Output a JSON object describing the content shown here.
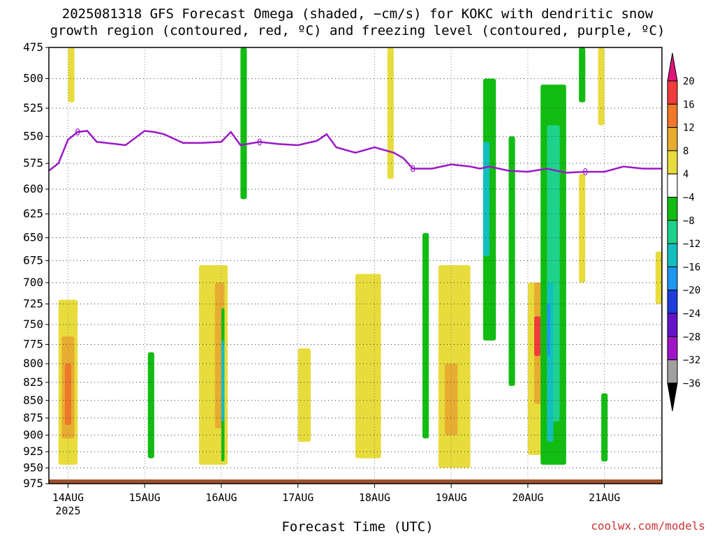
{
  "title": {
    "line1": "2025081318 GFS Forecast Omega (shaded, −cm/s) for KOKC with dendritic snow",
    "line2": "growth region (contoured, red, ºC) and freezing level (contoured, purple, ºC)"
  },
  "xlabel": "Forecast Time (UTC)",
  "credit": "coolwx.com/models",
  "chart_data": {
    "type": "heatmap",
    "variable": "omega",
    "units": "-cm/s",
    "y_axis": {
      "name": "pressure",
      "ticks": [
        475,
        500,
        525,
        550,
        575,
        600,
        625,
        650,
        675,
        700,
        725,
        750,
        775,
        800,
        825,
        850,
        875,
        900,
        925,
        950,
        975
      ],
      "range": [
        975,
        475
      ],
      "scale": "log"
    },
    "x_axis": {
      "range": [
        "2025-08-13T18:00Z",
        "2025-08-21T18:00Z"
      ],
      "ticks": [
        {
          "t": "2025-08-14T00:00Z",
          "label": "14AUG",
          "sublabel": "2025"
        },
        {
          "t": "2025-08-15T00:00Z",
          "label": "15AUG"
        },
        {
          "t": "2025-08-16T00:00Z",
          "label": "16AUG"
        },
        {
          "t": "2025-08-17T00:00Z",
          "label": "17AUG"
        },
        {
          "t": "2025-08-18T00:00Z",
          "label": "18AUG"
        },
        {
          "t": "2025-08-19T00:00Z",
          "label": "19AUG"
        },
        {
          "t": "2025-08-20T00:00Z",
          "label": "20AUG"
        },
        {
          "t": "2025-08-21T00:00Z",
          "label": "21AUG"
        }
      ]
    },
    "grid": true,
    "colorbar": {
      "placement": "right",
      "labels": [
        "20",
        "16",
        "12",
        "8",
        "4",
        "−4",
        "−8",
        "−12",
        "−16",
        "−20",
        "−24",
        "−28",
        "−32",
        "−36"
      ],
      "bins": [
        {
          "min": 20,
          "max": null,
          "color": "#e0147a"
        },
        {
          "min": 16,
          "max": 20,
          "color": "#f03c3c"
        },
        {
          "min": 12,
          "max": 16,
          "color": "#f07828"
        },
        {
          "min": 8,
          "max": 12,
          "color": "#e8ac30"
        },
        {
          "min": 4,
          "max": 8,
          "color": "#e8dc3c"
        },
        {
          "min": -4,
          "max": 4,
          "color": "#ffffff"
        },
        {
          "min": -8,
          "max": -4,
          "color": "#12bc12"
        },
        {
          "min": -12,
          "max": -8,
          "color": "#1ed28c"
        },
        {
          "min": -16,
          "max": -12,
          "color": "#14bebe"
        },
        {
          "min": -20,
          "max": -16,
          "color": "#1e96f0"
        },
        {
          "min": -24,
          "max": -20,
          "color": "#1e3cdc"
        },
        {
          "min": -28,
          "max": -24,
          "color": "#6414c8"
        },
        {
          "min": -32,
          "max": -28,
          "color": "#a014c8"
        },
        {
          "min": -36,
          "max": -32,
          "color": "#a0a0a0"
        },
        {
          "min": null,
          "max": -36,
          "color": "#000000"
        }
      ]
    },
    "freezing_level": {
      "color": "#9b18c8",
      "label": "0",
      "points": [
        [
          "2025-08-13T18:00Z",
          582
        ],
        [
          "2025-08-13T21:00Z",
          575
        ],
        [
          "2025-08-14T00:00Z",
          553
        ],
        [
          "2025-08-14T03:00Z",
          546
        ],
        [
          "2025-08-14T06:00Z",
          545
        ],
        [
          "2025-08-14T09:00Z",
          555
        ],
        [
          "2025-08-14T12:00Z",
          556
        ],
        [
          "2025-08-14T18:00Z",
          558
        ],
        [
          "2025-08-15T00:00Z",
          545
        ],
        [
          "2025-08-15T03:00Z",
          546
        ],
        [
          "2025-08-15T06:00Z",
          548
        ],
        [
          "2025-08-15T12:00Z",
          556
        ],
        [
          "2025-08-15T18:00Z",
          556
        ],
        [
          "2025-08-16T00:00Z",
          555
        ],
        [
          "2025-08-16T03:00Z",
          546
        ],
        [
          "2025-08-16T06:00Z",
          558
        ],
        [
          "2025-08-16T12:00Z",
          555
        ],
        [
          "2025-08-16T18:00Z",
          557
        ],
        [
          "2025-08-17T00:00Z",
          558
        ],
        [
          "2025-08-17T06:00Z",
          554
        ],
        [
          "2025-08-17T09:00Z",
          548
        ],
        [
          "2025-08-17T12:00Z",
          560
        ],
        [
          "2025-08-17T18:00Z",
          565
        ],
        [
          "2025-08-18T00:00Z",
          560
        ],
        [
          "2025-08-18T06:00Z",
          565
        ],
        [
          "2025-08-18T09:00Z",
          570
        ],
        [
          "2025-08-18T12:00Z",
          580
        ],
        [
          "2025-08-18T18:00Z",
          580
        ],
        [
          "2025-08-19T00:00Z",
          576
        ],
        [
          "2025-08-19T06:00Z",
          578
        ],
        [
          "2025-08-19T09:00Z",
          580
        ],
        [
          "2025-08-19T12:00Z",
          578
        ],
        [
          "2025-08-19T18:00Z",
          582
        ],
        [
          "2025-08-20T00:00Z",
          583
        ],
        [
          "2025-08-20T06:00Z",
          580
        ],
        [
          "2025-08-20T12:00Z",
          584
        ],
        [
          "2025-08-20T18:00Z",
          583
        ],
        [
          "2025-08-21T00:00Z",
          583
        ],
        [
          "2025-08-21T06:00Z",
          578
        ],
        [
          "2025-08-21T12:00Z",
          580
        ],
        [
          "2025-08-21T18:00Z",
          580
        ]
      ]
    },
    "features": [
      {
        "t": [
          "2025-08-13T21:00Z",
          "2025-08-14T03:00Z"
        ],
        "p": [
          720,
          945
        ],
        "color": "#e8dc3c"
      },
      {
        "t": [
          "2025-08-13T22:00Z",
          "2025-08-14T02:00Z"
        ],
        "p": [
          765,
          905
        ],
        "color": "#e8ac30"
      },
      {
        "t": [
          "2025-08-13T23:00Z",
          "2025-08-14T01:00Z"
        ],
        "p": [
          800,
          885
        ],
        "color": "#f07828"
      },
      {
        "t": [
          "2025-08-14T00:00Z",
          "2025-08-14T02:00Z"
        ],
        "p": [
          475,
          520
        ],
        "color": "#e8dc3c"
      },
      {
        "t": [
          "2025-08-15T01:00Z",
          "2025-08-15T03:00Z"
        ],
        "p": [
          785,
          935
        ],
        "color": "#12bc12"
      },
      {
        "t": [
          "2025-08-15T17:00Z",
          "2025-08-16T02:00Z"
        ],
        "p": [
          680,
          945
        ],
        "color": "#e8dc3c"
      },
      {
        "t": [
          "2025-08-15T22:00Z",
          "2025-08-16T01:00Z"
        ],
        "p": [
          700,
          890
        ],
        "color": "#e8ac30"
      },
      {
        "t": [
          "2025-08-16T00:00Z",
          "2025-08-16T01:00Z"
        ],
        "p": [
          730,
          940
        ],
        "color": "#12bc12"
      },
      {
        "t": [
          "2025-08-16T00:00Z",
          "2025-08-16T01:00Z"
        ],
        "p": [
          770,
          880
        ],
        "color": "#14bebe"
      },
      {
        "t": [
          "2025-08-16T06:00Z",
          "2025-08-16T08:00Z"
        ],
        "p": [
          475,
          610
        ],
        "color": "#12bc12"
      },
      {
        "t": [
          "2025-08-17T00:00Z",
          "2025-08-17T04:00Z"
        ],
        "p": [
          780,
          910
        ],
        "color": "#e8dc3c"
      },
      {
        "t": [
          "2025-08-17T18:00Z",
          "2025-08-18T02:00Z"
        ],
        "p": [
          690,
          935
        ],
        "color": "#e8dc3c"
      },
      {
        "t": [
          "2025-08-18T04:00Z",
          "2025-08-18T06:00Z"
        ],
        "p": [
          475,
          590
        ],
        "color": "#e8dc3c"
      },
      {
        "t": [
          "2025-08-18T15:00Z",
          "2025-08-18T17:00Z"
        ],
        "p": [
          645,
          905
        ],
        "color": "#12bc12"
      },
      {
        "t": [
          "2025-08-18T20:00Z",
          "2025-08-19T06:00Z"
        ],
        "p": [
          680,
          950
        ],
        "color": "#e8dc3c"
      },
      {
        "t": [
          "2025-08-18T22:00Z",
          "2025-08-19T02:00Z"
        ],
        "p": [
          800,
          900
        ],
        "color": "#e8ac30"
      },
      {
        "t": [
          "2025-08-19T10:00Z",
          "2025-08-19T14:00Z"
        ],
        "p": [
          500,
          770
        ],
        "color": "#12bc12"
      },
      {
        "t": [
          "2025-08-19T10:00Z",
          "2025-08-19T12:00Z"
        ],
        "p": [
          555,
          670
        ],
        "color": "#14bebe"
      },
      {
        "t": [
          "2025-08-19T18:00Z",
          "2025-08-19T20:00Z"
        ],
        "p": [
          550,
          830
        ],
        "color": "#12bc12"
      },
      {
        "t": [
          "2025-08-20T00:00Z",
          "2025-08-20T08:00Z"
        ],
        "p": [
          700,
          930
        ],
        "color": "#e8dc3c"
      },
      {
        "t": [
          "2025-08-20T02:00Z",
          "2025-08-20T05:00Z"
        ],
        "p": [
          700,
          855
        ],
        "color": "#e8ac30"
      },
      {
        "t": [
          "2025-08-20T02:00Z",
          "2025-08-20T04:00Z"
        ],
        "p": [
          740,
          790
        ],
        "color": "#f03c3c"
      },
      {
        "t": [
          "2025-08-20T04:00Z",
          "2025-08-20T12:00Z"
        ],
        "p": [
          505,
          945
        ],
        "color": "#12bc12"
      },
      {
        "t": [
          "2025-08-20T06:00Z",
          "2025-08-20T10:00Z"
        ],
        "p": [
          540,
          880
        ],
        "color": "#1ed28c"
      },
      {
        "t": [
          "2025-08-20T06:00Z",
          "2025-08-20T08:00Z"
        ],
        "p": [
          700,
          910
        ],
        "color": "#14bebe"
      },
      {
        "t": [
          "2025-08-20T06:00Z",
          "2025-08-20T07:00Z"
        ],
        "p": [
          725,
          790
        ],
        "color": "#1e96f0"
      },
      {
        "t": [
          "2025-08-20T16:00Z",
          "2025-08-20T18:00Z"
        ],
        "p": [
          475,
          520
        ],
        "color": "#12bc12"
      },
      {
        "t": [
          "2025-08-20T16:00Z",
          "2025-08-20T18:00Z"
        ],
        "p": [
          585,
          700
        ],
        "color": "#e8dc3c"
      },
      {
        "t": [
          "2025-08-20T22:00Z",
          "2025-08-21T00:00Z"
        ],
        "p": [
          475,
          540
        ],
        "color": "#e8dc3c"
      },
      {
        "t": [
          "2025-08-20T23:00Z",
          "2025-08-21T01:00Z"
        ],
        "p": [
          840,
          940
        ],
        "color": "#12bc12"
      },
      {
        "t": [
          "2025-08-21T16:00Z",
          "2025-08-21T18:00Z"
        ],
        "p": [
          665,
          725
        ],
        "color": "#e8dc3c"
      }
    ],
    "ground": {
      "color": "#a0522d",
      "p": 975
    }
  }
}
